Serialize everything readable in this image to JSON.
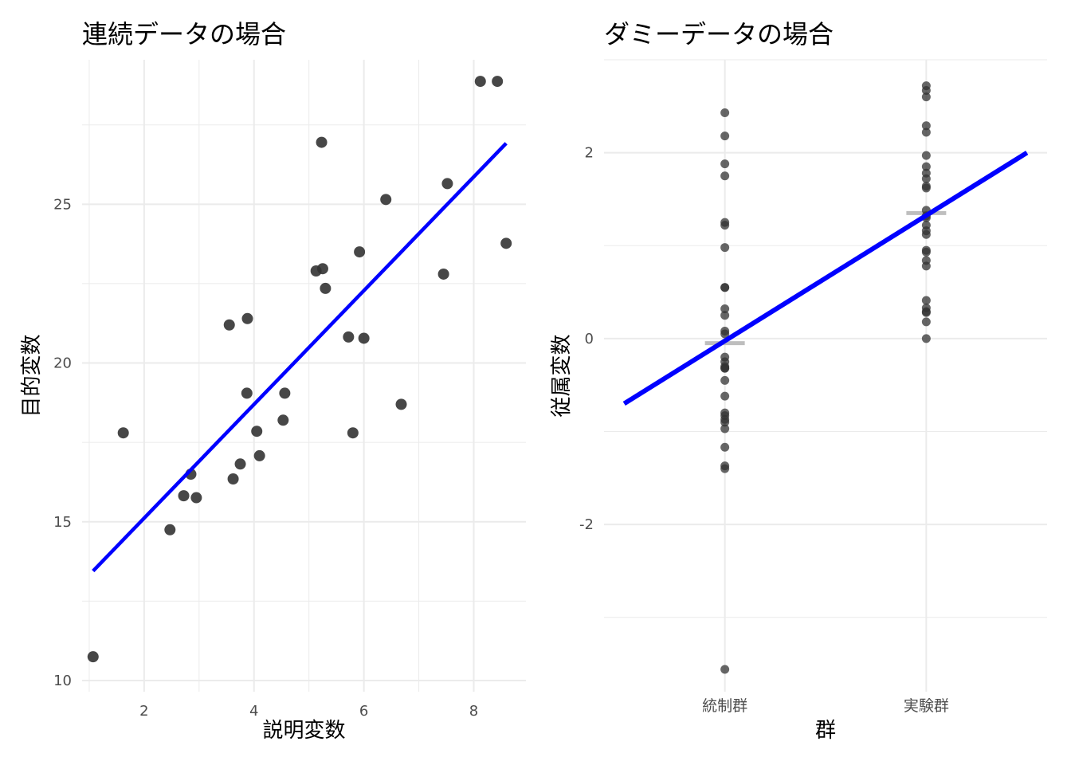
{
  "chart_data": [
    {
      "type": "scatter",
      "title": "連続データの場合",
      "xlabel": "説明変数",
      "ylabel": "目的変数",
      "xlim": [
        0.87,
        8.95
      ],
      "ylim": [
        9.65,
        29.55
      ],
      "xticks": [
        2,
        4,
        6,
        8
      ],
      "yticks": [
        10,
        15,
        20,
        25
      ],
      "grid": true,
      "points": [
        {
          "x": 1.07,
          "y": 10.75
        },
        {
          "x": 1.62,
          "y": 17.8
        },
        {
          "x": 2.47,
          "y": 14.75
        },
        {
          "x": 2.72,
          "y": 15.82
        },
        {
          "x": 2.85,
          "y": 16.5
        },
        {
          "x": 2.95,
          "y": 15.76
        },
        {
          "x": 3.55,
          "y": 21.2
        },
        {
          "x": 3.62,
          "y": 16.35
        },
        {
          "x": 3.75,
          "y": 16.82
        },
        {
          "x": 3.87,
          "y": 19.05
        },
        {
          "x": 3.88,
          "y": 21.4
        },
        {
          "x": 4.05,
          "y": 17.85
        },
        {
          "x": 4.1,
          "y": 17.08
        },
        {
          "x": 4.53,
          "y": 18.2
        },
        {
          "x": 4.56,
          "y": 19.05
        },
        {
          "x": 5.13,
          "y": 22.9
        },
        {
          "x": 5.23,
          "y": 26.95
        },
        {
          "x": 5.25,
          "y": 22.97
        },
        {
          "x": 5.3,
          "y": 22.35
        },
        {
          "x": 5.72,
          "y": 20.82
        },
        {
          "x": 5.8,
          "y": 17.8
        },
        {
          "x": 5.92,
          "y": 23.5
        },
        {
          "x": 6.0,
          "y": 20.78
        },
        {
          "x": 6.4,
          "y": 25.15
        },
        {
          "x": 6.68,
          "y": 18.7
        },
        {
          "x": 7.45,
          "y": 22.8
        },
        {
          "x": 7.52,
          "y": 25.65
        },
        {
          "x": 8.12,
          "y": 28.87
        },
        {
          "x": 8.43,
          "y": 28.87
        },
        {
          "x": 8.59,
          "y": 23.77
        }
      ],
      "fit_line": {
        "x": [
          1.07,
          8.59
        ],
        "y": [
          13.45,
          26.92
        ],
        "color": "#0000ff"
      },
      "point_color": "#333333"
    },
    {
      "type": "scatter",
      "title": "ダミーデータの場合",
      "xlabel": "群",
      "ylabel": "従属変数",
      "categories": [
        "統制群",
        "実験群"
      ],
      "ylim": [
        -3.8,
        3.0
      ],
      "yticks": [
        -2,
        0,
        2
      ],
      "grid": true,
      "group_values": [
        [
          2.43,
          2.18,
          1.88,
          1.75,
          1.25,
          1.22,
          0.98,
          0.55,
          0.55,
          0.32,
          0.25,
          0.08,
          0.05,
          -0.2,
          -0.25,
          -0.3,
          -0.32,
          -0.32,
          -0.45,
          -0.62,
          -0.8,
          -0.83,
          -0.87,
          -0.9,
          -0.97,
          -1.17,
          -1.37,
          -1.4,
          -3.56
        ],
        [
          2.72,
          2.67,
          2.6,
          2.29,
          2.22,
          1.97,
          1.85,
          1.78,
          1.72,
          1.64,
          1.62,
          1.38,
          1.32,
          1.3,
          1.22,
          1.16,
          1.12,
          0.95,
          0.93,
          0.84,
          0.78,
          0.41,
          0.33,
          0.29,
          0.28,
          0.18,
          0.0
        ]
      ],
      "group_means": [
        -0.05,
        1.35
      ],
      "fit_line": {
        "x": [
          -0.5,
          1.5
        ],
        "y": [
          -0.7,
          2.0
        ],
        "color": "#0000ff"
      },
      "mean_color": "#bebebe",
      "point_color": "#333333"
    }
  ]
}
